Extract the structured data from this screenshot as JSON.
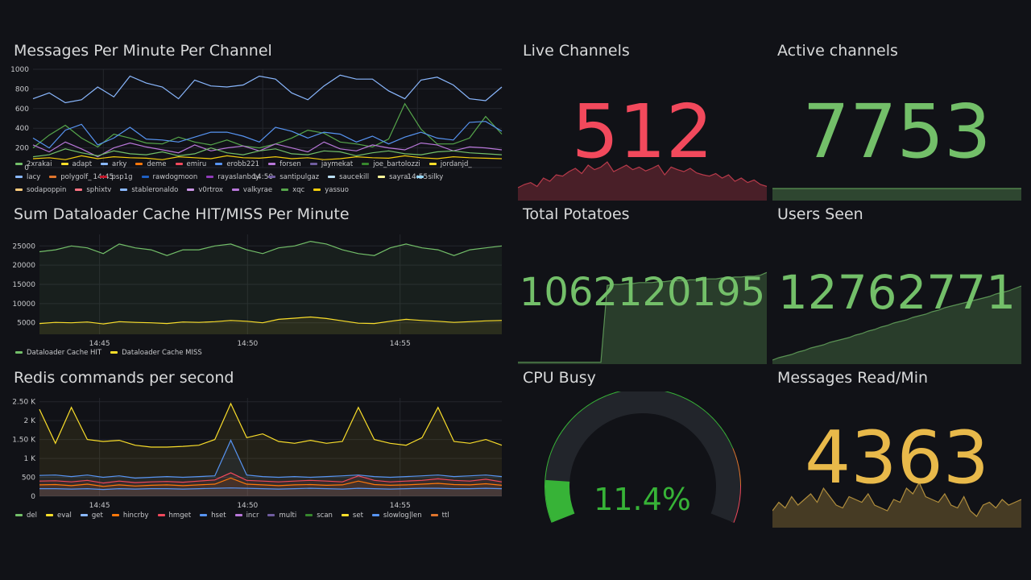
{
  "colors": {
    "bg": "#111217",
    "red": "#f2495c",
    "green": "#73bf69",
    "yellow": "#fade2a",
    "amber": "#e8b94a",
    "grid": "#24262d",
    "text": "#c7c8cb"
  },
  "panels": {
    "messages_per_minute": {
      "title": "Messages Per Minute Per Channel",
      "legend": [
        {
          "name": "2xrakai",
          "color": "#73bf69"
        },
        {
          "name": "adapt",
          "color": "#fade2a"
        },
        {
          "name": "arky",
          "color": "#8ab8ff"
        },
        {
          "name": "deme",
          "color": "#ff780a"
        },
        {
          "name": "emiru",
          "color": "#f2495c"
        },
        {
          "name": "erobb221",
          "color": "#5794f2"
        },
        {
          "name": "forsen",
          "color": "#b877d9"
        },
        {
          "name": "jaymekat",
          "color": "#705da0"
        },
        {
          "name": "joe_bartolozzi",
          "color": "#37872d"
        },
        {
          "name": "jordanjd_",
          "color": "#fade2a"
        },
        {
          "name": "lacy",
          "color": "#8ab8ff"
        },
        {
          "name": "polygolf_",
          "color": "#e0752d"
        },
        {
          "name": "psp1g",
          "color": "#c4162a"
        },
        {
          "name": "rawdogmoon",
          "color": "#1f60c4"
        },
        {
          "name": "rayaslanboy",
          "color": "#8f3bb8"
        },
        {
          "name": "santipulgaz",
          "color": "#705da0"
        },
        {
          "name": "saucekill",
          "color": "#badff4"
        },
        {
          "name": "sayra",
          "color": "#fff899"
        },
        {
          "name": "silky",
          "color": "#97d9ff"
        },
        {
          "name": "sodapoppin",
          "color": "#ffcb7d"
        },
        {
          "name": "sphixtv",
          "color": "#ff7383"
        },
        {
          "name": "stableronaldo",
          "color": "#8ab8ff"
        },
        {
          "name": "v0rtrox",
          "color": "#ca95e5"
        },
        {
          "name": "valkyrae",
          "color": "#b877d9"
        },
        {
          "name": "xqc",
          "color": "#56a64b"
        },
        {
          "name": "yassuo",
          "color": "#f2cc0c"
        }
      ]
    },
    "dataloader_cache": {
      "title": "Sum Dataloader Cache HIT/MISS Per Minute",
      "legend": [
        {
          "name": "Dataloader Cache HIT",
          "color": "#73bf69"
        },
        {
          "name": "Dataloader Cache MISS",
          "color": "#fade2a"
        }
      ]
    },
    "redis_commands": {
      "title": "Redis commands per second",
      "legend": [
        {
          "name": "del",
          "color": "#73bf69"
        },
        {
          "name": "eval",
          "color": "#fade2a"
        },
        {
          "name": "get",
          "color": "#8ab8ff"
        },
        {
          "name": "hincrby",
          "color": "#ff780a"
        },
        {
          "name": "hmget",
          "color": "#f2495c"
        },
        {
          "name": "hset",
          "color": "#5794f2"
        },
        {
          "name": "incr",
          "color": "#b877d9"
        },
        {
          "name": "multi",
          "color": "#705da0"
        },
        {
          "name": "scan",
          "color": "#37872d"
        },
        {
          "name": "set",
          "color": "#fade2a"
        },
        {
          "name": "slowlog|len",
          "color": "#5794f2"
        },
        {
          "name": "ttl",
          "color": "#e0752d"
        }
      ]
    },
    "live_channels": {
      "title": "Live Channels",
      "value": "512",
      "color": "#f2495c"
    },
    "active_channels": {
      "title": "Active channels",
      "value": "7753",
      "color": "#73bf69"
    },
    "total_potatoes": {
      "title": "Total Potatoes",
      "value": "1062120195",
      "color": "#73bf69"
    },
    "users_seen": {
      "title": "Users Seen",
      "value": "12762771",
      "color": "#73bf69"
    },
    "cpu_busy": {
      "title": "CPU Busy",
      "value": "11.4%",
      "percent": 11.4,
      "color": "#37b337"
    },
    "messages_read": {
      "title": "Messages Read/Min",
      "value": "4363",
      "color": "#e8b94a"
    }
  },
  "chart_data": [
    {
      "type": "line",
      "title": "Messages Per Minute Per Channel",
      "x_ticks": [
        "14:45",
        "14:50",
        "14:55"
      ],
      "y_ticks": [
        "0",
        "200",
        "400",
        "600",
        "800",
        "1000"
      ],
      "ylim": [
        0,
        1000
      ],
      "series": [
        {
          "name": "arky",
          "values": [
            700,
            760,
            660,
            690,
            820,
            720,
            930,
            860,
            820,
            700,
            890,
            830,
            820,
            840,
            930,
            900,
            760,
            690,
            830,
            940,
            900,
            900,
            780,
            700,
            890,
            920,
            840,
            700,
            680,
            820
          ]
        },
        {
          "name": "xqc",
          "values": [
            200,
            330,
            430,
            300,
            210,
            340,
            300,
            250,
            240,
            310,
            260,
            230,
            280,
            220,
            200,
            240,
            300,
            380,
            350,
            260,
            240,
            210,
            290,
            650,
            390,
            240,
            240,
            300,
            520,
            340
          ]
        },
        {
          "name": "erobb221",
          "values": [
            300,
            200,
            380,
            440,
            230,
            300,
            410,
            290,
            280,
            260,
            310,
            360,
            360,
            320,
            260,
            410,
            370,
            300,
            360,
            340,
            260,
            320,
            240,
            310,
            360,
            300,
            280,
            460,
            470,
            370
          ]
        },
        {
          "name": "forsen",
          "values": [
            230,
            160,
            260,
            190,
            110,
            200,
            250,
            210,
            180,
            150,
            230,
            170,
            200,
            220,
            170,
            240,
            200,
            160,
            260,
            190,
            170,
            230,
            200,
            180,
            250,
            230,
            170,
            210,
            200,
            180
          ]
        },
        {
          "name": "2xrakai",
          "values": [
            110,
            130,
            190,
            150,
            120,
            170,
            140,
            130,
            160,
            120,
            140,
            200,
            150,
            130,
            170,
            190,
            140,
            130,
            170,
            160,
            120,
            150,
            170,
            140,
            130,
            160,
            170,
            150,
            140,
            130
          ]
        },
        {
          "name": "yassuo",
          "values": [
            90,
            100,
            80,
            120,
            90,
            110,
            100,
            95,
            80,
            110,
            100,
            90,
            120,
            100,
            95,
            110,
            90,
            100,
            80,
            90,
            110,
            100,
            95,
            120,
            100,
            90,
            110,
            100,
            95,
            90
          ]
        }
      ]
    },
    {
      "type": "area",
      "title": "Sum Dataloader Cache HIT/MISS Per Minute",
      "x_ticks": [
        "14:45",
        "14:50",
        "14:55"
      ],
      "y_ticks": [
        "5000",
        "10000",
        "15000",
        "20000",
        "25000"
      ],
      "ylim": [
        2000,
        28000
      ],
      "series": [
        {
          "name": "Dataloader Cache HIT",
          "values": [
            23500,
            24000,
            25000,
            24500,
            23000,
            25500,
            24500,
            24000,
            22500,
            24000,
            24000,
            25000,
            25500,
            24000,
            23000,
            24500,
            25000,
            26200,
            25500,
            24000,
            23000,
            22500,
            24500,
            25500,
            24500,
            24000,
            22500,
            24000,
            24500,
            25000
          ]
        },
        {
          "name": "Dataloader Cache MISS",
          "values": [
            4800,
            5100,
            5000,
            5200,
            4700,
            5300,
            5100,
            5000,
            4800,
            5200,
            5100,
            5300,
            5600,
            5400,
            5000,
            5900,
            6200,
            6500,
            6100,
            5500,
            4900,
            4800,
            5400,
            5900,
            5600,
            5400,
            5100,
            5300,
            5500,
            5600
          ]
        }
      ]
    },
    {
      "type": "area",
      "title": "Redis commands per second",
      "x_ticks": [
        "14:45",
        "14:50",
        "14:55"
      ],
      "y_ticks": [
        "0",
        "500",
        "1 K",
        "1.50 K",
        "2 K",
        "2.50 K"
      ],
      "ylim": [
        0,
        2600
      ],
      "series": [
        {
          "name": "eval",
          "values": [
            2300,
            1400,
            2350,
            1500,
            1450,
            1480,
            1350,
            1300,
            1300,
            1320,
            1350,
            1500,
            2450,
            1550,
            1650,
            1450,
            1400,
            1480,
            1400,
            1450,
            2350,
            1500,
            1400,
            1350,
            1550,
            2350,
            1450,
            1400,
            1500,
            1350
          ]
        },
        {
          "name": "hset",
          "values": [
            550,
            560,
            520,
            560,
            500,
            540,
            480,
            500,
            520,
            500,
            520,
            540,
            1480,
            560,
            520,
            500,
            520,
            500,
            520,
            540,
            560,
            520,
            500,
            520,
            540,
            560,
            520,
            540,
            560,
            520
          ]
        },
        {
          "name": "hmget",
          "values": [
            400,
            410,
            380,
            420,
            350,
            400,
            360,
            380,
            390,
            370,
            400,
            430,
            620,
            420,
            400,
            380,
            400,
            420,
            400,
            380,
            540,
            420,
            380,
            400,
            420,
            460,
            420,
            400,
            450,
            380
          ]
        },
        {
          "name": "hincrby",
          "values": [
            300,
            310,
            280,
            320,
            260,
            300,
            270,
            290,
            300,
            280,
            300,
            320,
            480,
            320,
            300,
            280,
            300,
            310,
            290,
            300,
            400,
            310,
            290,
            300,
            320,
            340,
            310,
            300,
            330,
            290
          ]
        },
        {
          "name": "slowlog|len",
          "values": [
            200,
            200,
            190,
            200,
            180,
            200,
            190,
            200,
            200,
            190,
            200,
            210,
            220,
            210,
            200,
            190,
            200,
            210,
            200,
            190,
            210,
            200,
            190,
            200,
            210,
            210,
            200,
            200,
            210,
            200
          ]
        }
      ]
    }
  ],
  "stat_sparks": {
    "live_channels": [
      20,
      25,
      28,
      22,
      35,
      30,
      40,
      38,
      45,
      50,
      42,
      55,
      48,
      52,
      60,
      45,
      50,
      55,
      48,
      52,
      46,
      50,
      55,
      40,
      52,
      48,
      45,
      50,
      43,
      40,
      38,
      42,
      35,
      40,
      30,
      35,
      28,
      32,
      25,
      22
    ],
    "active_channels": [
      50,
      50,
      50,
      50,
      50,
      50,
      50,
      50,
      50,
      50,
      50,
      50,
      50,
      50,
      50,
      50,
      50,
      50,
      50,
      50,
      50,
      50,
      50,
      50,
      50,
      50,
      50,
      50,
      50,
      50,
      50,
      50,
      50,
      50,
      50,
      50,
      50,
      50,
      50,
      50
    ],
    "total_potatoes": [
      2,
      2,
      2,
      2,
      2,
      2,
      2,
      2,
      2,
      2,
      2,
      2,
      2,
      2,
      85,
      86,
      86,
      87,
      87,
      88,
      88,
      88,
      89,
      89,
      90,
      90,
      90,
      91,
      91,
      92,
      92,
      92,
      93,
      93,
      94,
      94,
      95,
      95,
      96,
      99
    ],
    "users_seen": [
      5,
      8,
      10,
      12,
      15,
      17,
      20,
      22,
      24,
      27,
      29,
      31,
      33,
      36,
      38,
      41,
      43,
      46,
      48,
      51,
      53,
      55,
      58,
      60,
      62,
      65,
      67,
      70,
      72,
      74,
      76,
      78,
      80,
      82,
      84,
      87,
      89,
      91,
      94,
      97
    ],
    "messages_read": [
      30,
      45,
      35,
      55,
      40,
      50,
      60,
      45,
      70,
      55,
      40,
      35,
      55,
      50,
      45,
      60,
      40,
      35,
      30,
      50,
      45,
      70,
      60,
      80,
      55,
      50,
      45,
      60,
      40,
      35,
      55,
      30,
      20,
      40,
      45,
      35,
      50,
      40,
      45,
      50
    ]
  }
}
